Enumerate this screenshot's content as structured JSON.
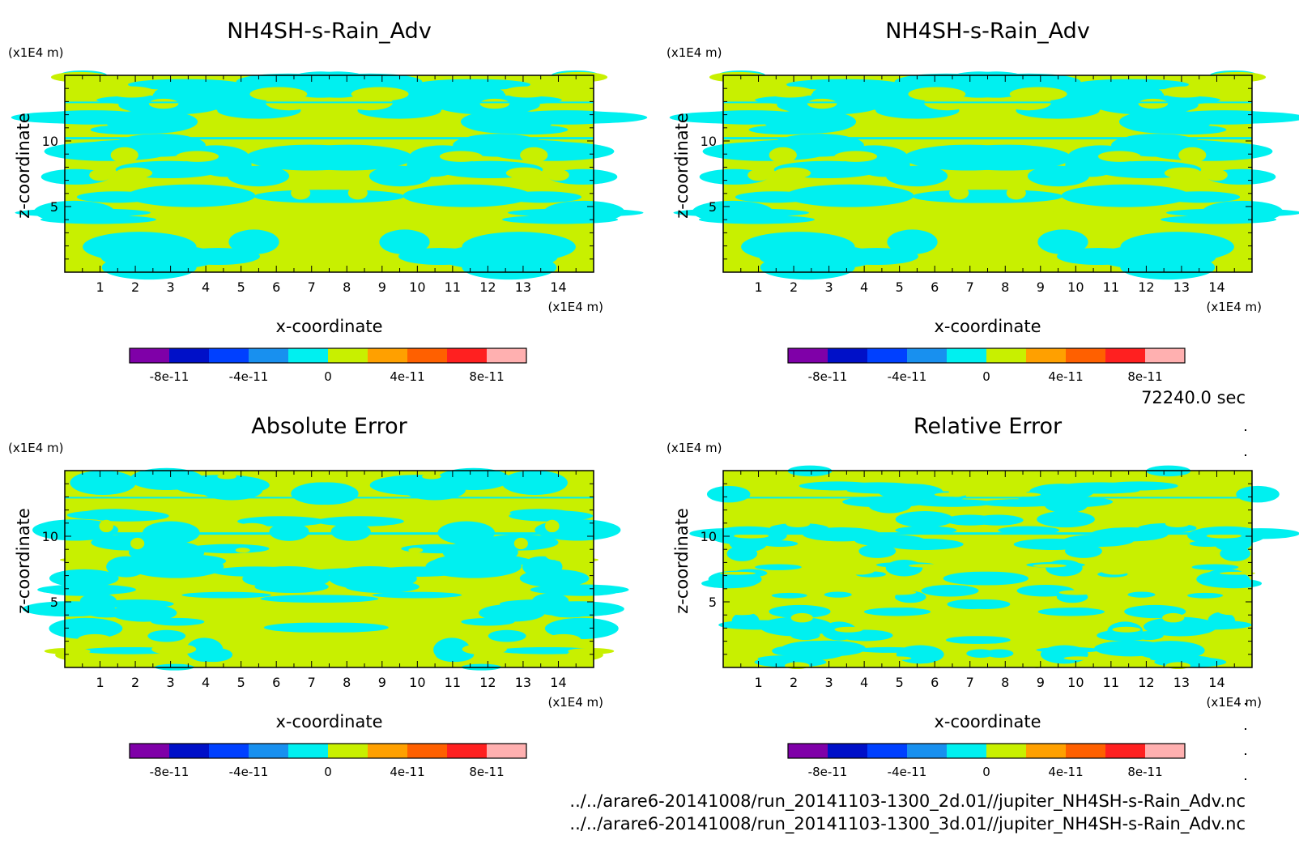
{
  "chart_data": [
    {
      "type": "heatmap",
      "title": "NH4SH-s-Rain_Adv",
      "xlabel": "x-coordinate",
      "ylabel": "z-coordinate",
      "x_unit": "(x1E4 m)",
      "y_unit": "(x1E4 m)",
      "xlim": [
        0,
        15
      ],
      "ylim": [
        0,
        15
      ],
      "x_ticks": [
        "1",
        "2",
        "3",
        "4",
        "5",
        "6",
        "7",
        "8",
        "9",
        "10",
        "11",
        "12",
        "13",
        "14"
      ],
      "y_ticks": [
        "5",
        "10"
      ],
      "seed": 11,
      "colorbar": {
        "levels": [
          -1e-10,
          -8e-11,
          -6e-11,
          -4e-11,
          -2e-11,
          0,
          2e-11,
          4e-11,
          6e-11,
          8e-11,
          1e-10
        ],
        "colors": [
          "#7f00a8",
          "#0010c8",
          "#0040ff",
          "#1890ef",
          "#00f0f0",
          "#c8f000",
          "#ffa000",
          "#ff6000",
          "#ff2020",
          "#ffb0b0"
        ],
        "tick_labels": [
          "-8e-11",
          "-4e-11",
          "0",
          "4e-11",
          "8e-11"
        ]
      }
    },
    {
      "type": "heatmap",
      "title": "NH4SH-s-Rain_Adv",
      "xlabel": "x-coordinate",
      "ylabel": "z-coordinate",
      "x_unit": "(x1E4 m)",
      "y_unit": "(x1E4 m)",
      "xlim": [
        0,
        15
      ],
      "ylim": [
        0,
        15
      ],
      "x_ticks": [
        "1",
        "2",
        "3",
        "4",
        "5",
        "6",
        "7",
        "8",
        "9",
        "10",
        "11",
        "12",
        "13",
        "14"
      ],
      "y_ticks": [
        "5",
        "10"
      ],
      "seed": 11,
      "colorbar": {
        "levels": [
          -1e-10,
          -8e-11,
          -6e-11,
          -4e-11,
          -2e-11,
          0,
          2e-11,
          4e-11,
          6e-11,
          8e-11,
          1e-10
        ],
        "colors": [
          "#7f00a8",
          "#0010c8",
          "#0040ff",
          "#1890ef",
          "#00f0f0",
          "#c8f000",
          "#ffa000",
          "#ff6000",
          "#ff2020",
          "#ffb0b0"
        ],
        "tick_labels": [
          "-8e-11",
          "-4e-11",
          "0",
          "4e-11",
          "8e-11"
        ]
      }
    },
    {
      "type": "heatmap",
      "title": "Absolute Error",
      "xlabel": "x-coordinate",
      "ylabel": "z-coordinate",
      "x_unit": "(x1E4 m)",
      "y_unit": "(x1E4 m)",
      "xlim": [
        0,
        15
      ],
      "ylim": [
        0,
        15
      ],
      "x_ticks": [
        "1",
        "2",
        "3",
        "4",
        "5",
        "6",
        "7",
        "8",
        "9",
        "10",
        "11",
        "12",
        "13",
        "14"
      ],
      "y_ticks": [
        "5",
        "10"
      ],
      "seed": 23,
      "colorbar": {
        "levels": [
          -1e-10,
          -8e-11,
          -6e-11,
          -4e-11,
          -2e-11,
          0,
          2e-11,
          4e-11,
          6e-11,
          8e-11,
          1e-10
        ],
        "colors": [
          "#7f00a8",
          "#0010c8",
          "#0040ff",
          "#1890ef",
          "#00f0f0",
          "#c8f000",
          "#ffa000",
          "#ff6000",
          "#ff2020",
          "#ffb0b0"
        ],
        "tick_labels": [
          "-8e-11",
          "-4e-11",
          "0",
          "4e-11",
          "8e-11"
        ]
      }
    },
    {
      "type": "heatmap",
      "title": "Relative Error",
      "xlabel": "x-coordinate",
      "ylabel": "z-coordinate",
      "x_unit": "(x1E4 m)",
      "y_unit": "(x1E4 m)",
      "xlim": [
        0,
        15
      ],
      "ylim": [
        0,
        15
      ],
      "x_ticks": [
        "1",
        "2",
        "3",
        "4",
        "5",
        "6",
        "7",
        "8",
        "9",
        "10",
        "11",
        "12",
        "13",
        "14"
      ],
      "y_ticks": [
        "5",
        "10"
      ],
      "seed": 37,
      "colorbar": {
        "levels": [
          -1e-10,
          -8e-11,
          -6e-11,
          -4e-11,
          -2e-11,
          0,
          2e-11,
          4e-11,
          6e-11,
          8e-11,
          1e-10
        ],
        "colors": [
          "#7f00a8",
          "#0010c8",
          "#0040ff",
          "#1890ef",
          "#00f0f0",
          "#c8f000",
          "#ffa000",
          "#ff6000",
          "#ff2020",
          "#ffb0b0"
        ],
        "tick_labels": [
          "-8e-11",
          "-4e-11",
          "0",
          "4e-11",
          "8e-11"
        ]
      }
    }
  ],
  "info": {
    "time": "72240.0 sec",
    "file_2d": "../../arare6-20141008/run_20141103-1300_2d.01//jupiter_NH4SH-s-Rain_Adv.nc",
    "file_3d": "../../arare6-20141008/run_20141103-1300_3d.01//jupiter_NH4SH-s-Rain_Adv.nc"
  }
}
